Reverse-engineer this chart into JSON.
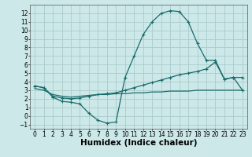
{
  "xlabel": "Humidex (Indice chaleur)",
  "bg_color": "#cce8e8",
  "grid_color": "#aacccc",
  "line_color": "#1a6b6b",
  "xlim": [
    -0.5,
    23.5
  ],
  "ylim": [
    -1.5,
    13.0
  ],
  "xticks": [
    0,
    1,
    2,
    3,
    4,
    5,
    6,
    7,
    8,
    9,
    10,
    11,
    12,
    13,
    14,
    15,
    16,
    17,
    18,
    19,
    20,
    21,
    22,
    23
  ],
  "yticks": [
    -1,
    0,
    1,
    2,
    3,
    4,
    5,
    6,
    7,
    8,
    9,
    10,
    11,
    12
  ],
  "line1_x": [
    0,
    1,
    2,
    3,
    4,
    5,
    6,
    7,
    8,
    9,
    10,
    11,
    12,
    13,
    14,
    15,
    16,
    17,
    18,
    19,
    20,
    21,
    22,
    23
  ],
  "line1_y": [
    3.5,
    3.3,
    2.2,
    1.7,
    1.6,
    1.4,
    0.3,
    -0.5,
    -0.85,
    -0.7,
    4.5,
    7.0,
    9.5,
    11.0,
    12.0,
    12.3,
    12.2,
    11.0,
    8.5,
    6.5,
    6.5,
    4.3,
    4.5,
    4.5
  ],
  "line2_x": [
    0,
    1,
    2,
    3,
    4,
    5,
    6,
    7,
    8,
    9,
    10,
    11,
    12,
    13,
    14,
    15,
    16,
    17,
    18,
    19,
    20,
    21,
    22,
    23
  ],
  "line2_y": [
    3.5,
    3.3,
    2.3,
    2.1,
    2.0,
    2.1,
    2.3,
    2.5,
    2.6,
    2.7,
    3.0,
    3.3,
    3.6,
    3.9,
    4.2,
    4.5,
    4.8,
    5.0,
    5.2,
    5.5,
    6.3,
    4.3,
    4.5,
    3.0
  ],
  "line3_x": [
    0,
    1,
    2,
    3,
    4,
    5,
    6,
    7,
    8,
    9,
    10,
    11,
    12,
    13,
    14,
    15,
    16,
    17,
    18,
    19,
    20,
    21,
    22,
    23
  ],
  "line3_y": [
    3.2,
    3.0,
    2.5,
    2.3,
    2.2,
    2.3,
    2.4,
    2.5,
    2.5,
    2.6,
    2.6,
    2.7,
    2.7,
    2.8,
    2.8,
    2.9,
    2.9,
    2.9,
    3.0,
    3.0,
    3.0,
    3.0,
    3.0,
    3.0
  ],
  "linewidth": 0.9,
  "tick_labelsize": 5.5,
  "xlabel_fontsize": 7.5,
  "xlabel_fontweight": "bold"
}
